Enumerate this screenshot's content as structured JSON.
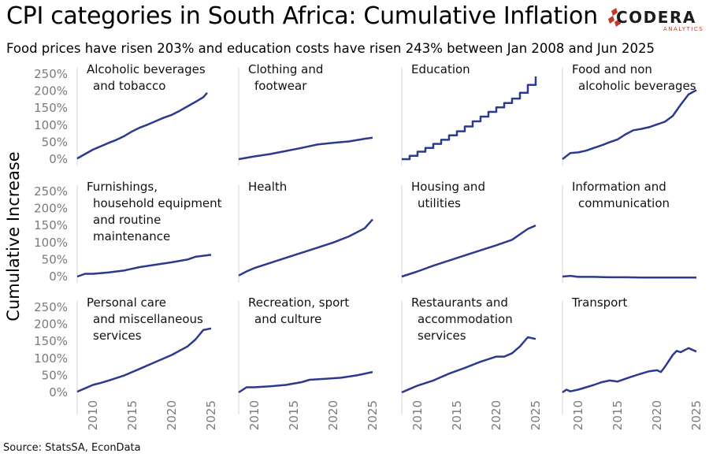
{
  "header": {
    "title": "CPI categories in South Africa: Cumulative Inflation",
    "subtitle": "Food prices have risen 203% and education costs have risen 243% between Jan 2008 and Jun 2025",
    "source": "Source: StatsSA, EconData"
  },
  "logo": {
    "text": "CODERA",
    "sub": "ANALYTICS",
    "accent": "#c0392b"
  },
  "chart_data": {
    "type": "line",
    "layout": "small multiples 3 rows x 4 columns",
    "ylabel": "Cumulative Increase",
    "xlim": [
      2008,
      2025.5
    ],
    "ylim": [
      0,
      250
    ],
    "x_ticks": [
      "2010",
      "2015",
      "2020",
      "2025"
    ],
    "y_ticks": [
      "0%",
      "50%",
      "100%",
      "150%",
      "200%",
      "250%"
    ],
    "line_color": "#2b3a8f",
    "panels": [
      {
        "label_lines": [
          "Alcoholic beverages",
          "and tobacco"
        ],
        "points": [
          [
            2008,
            2
          ],
          [
            2009,
            15
          ],
          [
            2010,
            28
          ],
          [
            2011,
            38
          ],
          [
            2012,
            48
          ],
          [
            2013,
            57
          ],
          [
            2014,
            68
          ],
          [
            2015,
            82
          ],
          [
            2016,
            93
          ],
          [
            2017,
            102
          ],
          [
            2018,
            112
          ],
          [
            2019,
            122
          ],
          [
            2020,
            130
          ],
          [
            2021,
            142
          ],
          [
            2022,
            155
          ],
          [
            2023,
            168
          ],
          [
            2024,
            182
          ],
          [
            2024.5,
            195
          ]
        ]
      },
      {
        "label_lines": [
          "Clothing and",
          "footwear"
        ],
        "points": [
          [
            2008,
            0
          ],
          [
            2010,
            8
          ],
          [
            2012,
            15
          ],
          [
            2014,
            24
          ],
          [
            2016,
            33
          ],
          [
            2018,
            43
          ],
          [
            2020,
            48
          ],
          [
            2022,
            52
          ],
          [
            2024,
            60
          ],
          [
            2025,
            63
          ]
        ]
      },
      {
        "label_lines": [
          "Education"
        ],
        "step": true,
        "points": [
          [
            2008,
            0
          ],
          [
            2009,
            10
          ],
          [
            2010,
            22
          ],
          [
            2011,
            33
          ],
          [
            2012,
            45
          ],
          [
            2013,
            57
          ],
          [
            2014,
            70
          ],
          [
            2015,
            82
          ],
          [
            2016,
            96
          ],
          [
            2017,
            111
          ],
          [
            2018,
            125
          ],
          [
            2019,
            139
          ],
          [
            2020,
            152
          ],
          [
            2021,
            165
          ],
          [
            2022,
            178
          ],
          [
            2023,
            195
          ],
          [
            2024,
            218
          ],
          [
            2025,
            243
          ]
        ]
      },
      {
        "label_lines": [
          "Food and non",
          "alcoholic beverages"
        ],
        "points": [
          [
            2008,
            0
          ],
          [
            2009,
            18
          ],
          [
            2010,
            20
          ],
          [
            2011,
            25
          ],
          [
            2012,
            33
          ],
          [
            2013,
            41
          ],
          [
            2014,
            50
          ],
          [
            2015,
            58
          ],
          [
            2016,
            73
          ],
          [
            2017,
            85
          ],
          [
            2018,
            89
          ],
          [
            2019,
            94
          ],
          [
            2020,
            102
          ],
          [
            2021,
            110
          ],
          [
            2022,
            127
          ],
          [
            2023,
            160
          ],
          [
            2024,
            190
          ],
          [
            2025,
            203
          ]
        ]
      },
      {
        "label_lines": [
          "Furnishings,",
          "household equipment",
          "and routine",
          "maintenance"
        ],
        "points": [
          [
            2008,
            0
          ],
          [
            2009,
            8
          ],
          [
            2010,
            8
          ],
          [
            2012,
            12
          ],
          [
            2014,
            18
          ],
          [
            2016,
            28
          ],
          [
            2018,
            35
          ],
          [
            2020,
            42
          ],
          [
            2022,
            50
          ],
          [
            2023,
            58
          ],
          [
            2025,
            64
          ]
        ]
      },
      {
        "label_lines": [
          "Health"
        ],
        "points": [
          [
            2008,
            3
          ],
          [
            2009,
            15
          ],
          [
            2010,
            25
          ],
          [
            2012,
            40
          ],
          [
            2014,
            55
          ],
          [
            2016,
            70
          ],
          [
            2018,
            85
          ],
          [
            2020,
            100
          ],
          [
            2022,
            118
          ],
          [
            2024,
            142
          ],
          [
            2025,
            168
          ]
        ]
      },
      {
        "label_lines": [
          "Housing and",
          "utilities"
        ],
        "points": [
          [
            2008,
            0
          ],
          [
            2010,
            15
          ],
          [
            2012,
            32
          ],
          [
            2014,
            47
          ],
          [
            2016,
            62
          ],
          [
            2018,
            77
          ],
          [
            2020,
            92
          ],
          [
            2022,
            108
          ],
          [
            2024,
            140
          ],
          [
            2025,
            150
          ]
        ]
      },
      {
        "label_lines": [
          "Information and",
          "communication"
        ],
        "points": [
          [
            2008,
            0
          ],
          [
            2009,
            2
          ],
          [
            2010,
            -1
          ],
          [
            2012,
            -1
          ],
          [
            2014,
            -2
          ],
          [
            2016,
            -2
          ],
          [
            2018,
            -3
          ],
          [
            2020,
            -3
          ],
          [
            2022,
            -3
          ],
          [
            2025,
            -3
          ]
        ]
      },
      {
        "label_lines": [
          "Personal care",
          "and miscellaneous",
          "services"
        ],
        "points": [
          [
            2008,
            2
          ],
          [
            2009,
            12
          ],
          [
            2010,
            22
          ],
          [
            2011,
            28
          ],
          [
            2012,
            35
          ],
          [
            2014,
            50
          ],
          [
            2016,
            70
          ],
          [
            2018,
            90
          ],
          [
            2020,
            110
          ],
          [
            2022,
            135
          ],
          [
            2023,
            155
          ],
          [
            2024,
            183
          ],
          [
            2025,
            188
          ]
        ]
      },
      {
        "label_lines": [
          "Recreation, sport",
          "and culture"
        ],
        "points": [
          [
            2008,
            0
          ],
          [
            2009,
            15
          ],
          [
            2010,
            15
          ],
          [
            2012,
            18
          ],
          [
            2014,
            22
          ],
          [
            2016,
            30
          ],
          [
            2017,
            37
          ],
          [
            2019,
            40
          ],
          [
            2021,
            43
          ],
          [
            2023,
            50
          ],
          [
            2025,
            60
          ]
        ]
      },
      {
        "label_lines": [
          "Restaurants and",
          "accommodation",
          "services"
        ],
        "points": [
          [
            2008,
            0
          ],
          [
            2009,
            10
          ],
          [
            2010,
            20
          ],
          [
            2012,
            35
          ],
          [
            2014,
            55
          ],
          [
            2016,
            72
          ],
          [
            2018,
            90
          ],
          [
            2020,
            105
          ],
          [
            2021,
            105
          ],
          [
            2022,
            115
          ],
          [
            2023,
            135
          ],
          [
            2024,
            162
          ],
          [
            2025,
            157
          ]
        ]
      },
      {
        "label_lines": [
          "Transport"
        ],
        "points": [
          [
            2008,
            0
          ],
          [
            2008.5,
            8
          ],
          [
            2009,
            3
          ],
          [
            2010,
            8
          ],
          [
            2011,
            15
          ],
          [
            2012,
            22
          ],
          [
            2013,
            30
          ],
          [
            2014,
            35
          ],
          [
            2015,
            32
          ],
          [
            2016,
            40
          ],
          [
            2017,
            48
          ],
          [
            2018,
            55
          ],
          [
            2019,
            62
          ],
          [
            2020,
            65
          ],
          [
            2020.5,
            60
          ],
          [
            2021,
            75
          ],
          [
            2022,
            110
          ],
          [
            2022.5,
            122
          ],
          [
            2023,
            118
          ],
          [
            2024,
            130
          ],
          [
            2025,
            120
          ]
        ]
      }
    ]
  }
}
